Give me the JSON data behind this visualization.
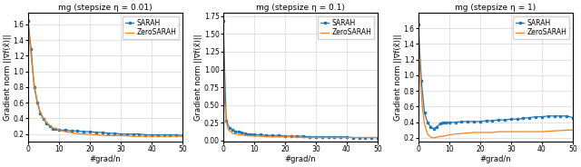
{
  "titles": [
    "mg (stepsize η = 0.01)",
    "mg (stepsize η = 0.1)",
    "mg (stepsize η = 1)"
  ],
  "xlabel": "#grad/n",
  "ylabel": "Gradient norm ||∇f(x̃)||",
  "sarah_color": "#1f77b4",
  "zerosara_color": "#ff7f0e",
  "marker": "s",
  "markersize": 2.0,
  "linewidth": 0.9,
  "legend_entries": [
    "SARAH",
    "ZeroSARAH"
  ],
  "xlim": [
    0,
    50
  ],
  "subplot1": {
    "ylim": [
      0.1,
      1.75
    ],
    "yticks": [
      0.2,
      0.4,
      0.6,
      0.8,
      1.0,
      1.2,
      1.4,
      1.6
    ],
    "sarah_x": [
      0,
      1,
      2,
      3,
      4,
      5,
      6,
      7,
      8,
      9,
      10,
      12,
      14,
      16,
      18,
      20,
      22,
      24,
      26,
      28,
      30,
      32,
      34,
      36,
      38,
      40,
      42,
      44,
      46,
      48,
      50
    ],
    "sarah_y": [
      1.65,
      1.28,
      0.8,
      0.6,
      0.46,
      0.39,
      0.34,
      0.3,
      0.27,
      0.26,
      0.25,
      0.25,
      0.24,
      0.24,
      0.23,
      0.23,
      0.22,
      0.22,
      0.21,
      0.21,
      0.2,
      0.2,
      0.2,
      0.2,
      0.19,
      0.19,
      0.19,
      0.19,
      0.19,
      0.19,
      0.18
    ],
    "zerosara_x": [
      0,
      0.5,
      1,
      1.5,
      2,
      2.5,
      3,
      4,
      5,
      6,
      7,
      8,
      10,
      12,
      15,
      18,
      22,
      26,
      30,
      35,
      40,
      45,
      50
    ],
    "zerosara_y": [
      1.65,
      1.4,
      1.2,
      1.0,
      0.85,
      0.72,
      0.62,
      0.48,
      0.4,
      0.35,
      0.31,
      0.28,
      0.25,
      0.23,
      0.21,
      0.2,
      0.19,
      0.18,
      0.18,
      0.17,
      0.17,
      0.17,
      0.17
    ]
  },
  "subplot2": {
    "ylim": [
      -0.02,
      1.8
    ],
    "yticks": [
      0.0,
      0.25,
      0.5,
      0.75,
      1.0,
      1.25,
      1.5,
      1.75
    ],
    "sarah_x": [
      0,
      1,
      2,
      3,
      4,
      5,
      6,
      7,
      8,
      9,
      10,
      12,
      14,
      16,
      18,
      20,
      22,
      24,
      26,
      28,
      30,
      32,
      34,
      36,
      38,
      40,
      42,
      44,
      46,
      48,
      50
    ],
    "sarah_y": [
      1.68,
      0.28,
      0.18,
      0.15,
      0.13,
      0.12,
      0.11,
      0.1,
      0.09,
      0.09,
      0.08,
      0.08,
      0.07,
      0.07,
      0.07,
      0.06,
      0.06,
      0.06,
      0.06,
      0.05,
      0.05,
      0.05,
      0.05,
      0.05,
      0.05,
      0.05,
      0.04,
      0.04,
      0.04,
      0.04,
      0.04
    ],
    "zerosara_x": [
      0,
      0.5,
      1,
      1.5,
      2,
      2.5,
      3,
      4,
      5,
      6,
      7,
      8,
      10,
      12,
      15,
      18,
      22,
      26,
      30,
      35,
      40,
      45,
      50
    ],
    "zerosara_y": [
      1.68,
      0.55,
      0.27,
      0.17,
      0.14,
      0.12,
      0.1,
      0.09,
      0.08,
      0.08,
      0.07,
      0.07,
      0.06,
      0.06,
      0.05,
      0.05,
      0.05,
      0.04,
      0.04,
      0.04,
      0.04,
      0.04,
      0.04
    ]
  },
  "subplot3": {
    "ylim": [
      0.15,
      1.8
    ],
    "yticks": [
      0.2,
      0.4,
      0.6,
      0.8,
      1.0,
      1.2,
      1.4,
      1.6
    ],
    "sarah_x": [
      0,
      1,
      2,
      3,
      4,
      5,
      6,
      7,
      8,
      9,
      10,
      12,
      14,
      16,
      18,
      20,
      22,
      24,
      26,
      28,
      30,
      32,
      34,
      36,
      38,
      40,
      42,
      44,
      46,
      48,
      50
    ],
    "sarah_y": [
      1.65,
      0.93,
      0.52,
      0.4,
      0.34,
      0.32,
      0.34,
      0.38,
      0.4,
      0.4,
      0.4,
      0.4,
      0.41,
      0.41,
      0.41,
      0.41,
      0.42,
      0.42,
      0.43,
      0.43,
      0.44,
      0.44,
      0.45,
      0.46,
      0.47,
      0.47,
      0.48,
      0.48,
      0.48,
      0.48,
      0.46
    ],
    "zerosara_x": [
      0,
      0.5,
      1,
      1.5,
      2,
      3,
      4,
      5,
      6,
      7,
      8,
      10,
      12,
      15,
      18,
      20,
      22,
      24,
      26,
      28,
      30,
      33,
      36,
      40,
      44,
      48,
      50
    ],
    "zerosara_y": [
      1.65,
      1.1,
      0.75,
      0.52,
      0.38,
      0.25,
      0.21,
      0.2,
      0.21,
      0.22,
      0.22,
      0.24,
      0.25,
      0.26,
      0.27,
      0.27,
      0.27,
      0.27,
      0.28,
      0.28,
      0.28,
      0.28,
      0.28,
      0.28,
      0.29,
      0.3,
      0.3
    ]
  },
  "figsize": [
    6.4,
    1.84
  ],
  "dpi": 100,
  "title_fontsize": 6.5,
  "label_fontsize": 6,
  "tick_fontsize": 5.5,
  "legend_fontsize": 5.5
}
